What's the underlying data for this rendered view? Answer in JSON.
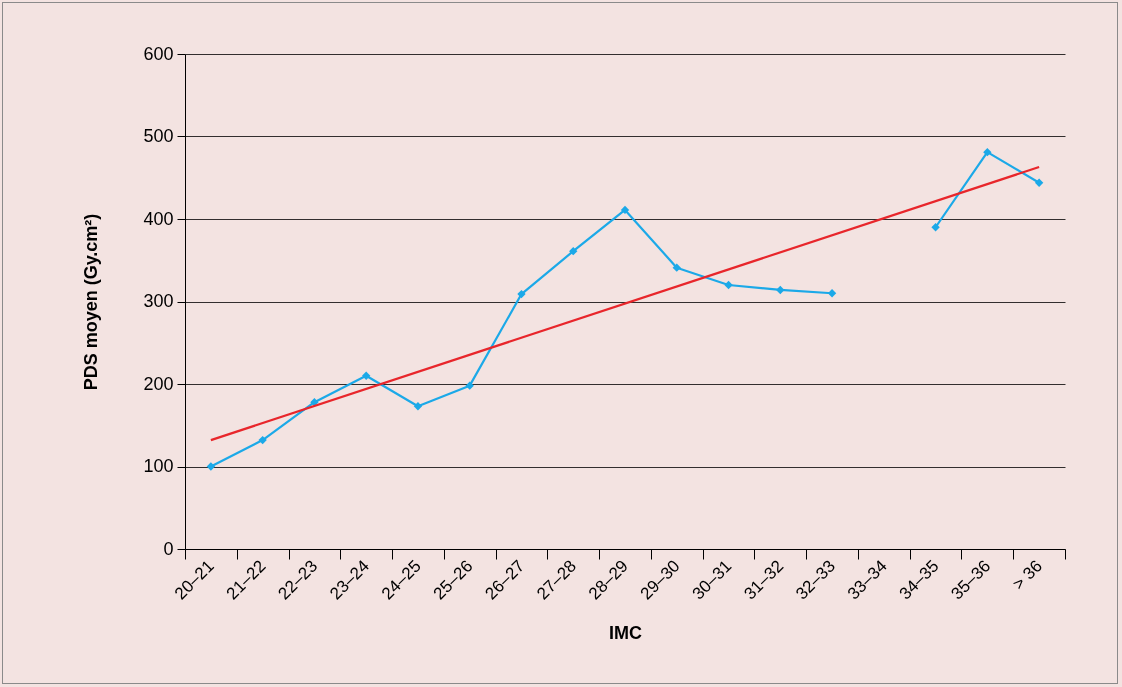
{
  "chart_data": {
    "type": "line",
    "xlabel": "IMC",
    "ylabel": "PDS moyen (Gy.cm²)",
    "categories": [
      "20–21",
      "21–22",
      "22–23",
      "23–24",
      "24–25",
      "25–26",
      "26–27",
      "27–28",
      "28–29",
      "29–30",
      "30–31",
      "31–32",
      "32–33",
      "33–34",
      "34–35",
      "35–36",
      "> 36"
    ],
    "series": [
      {
        "color": "#1ba9e8",
        "marker": "diamond",
        "values": [
          100,
          132,
          178,
          210,
          173,
          198,
          309,
          361,
          411,
          341,
          320,
          314,
          310,
          null,
          390,
          481,
          444
        ]
      },
      {
        "color": "#e8262b",
        "marker": "none",
        "x": [
          "20–21",
          "> 36"
        ],
        "values": [
          132,
          463
        ]
      }
    ],
    "ylim": [
      0,
      600
    ],
    "yticks": [
      0,
      100,
      200,
      300,
      400,
      500,
      600
    ],
    "grid": "y"
  }
}
